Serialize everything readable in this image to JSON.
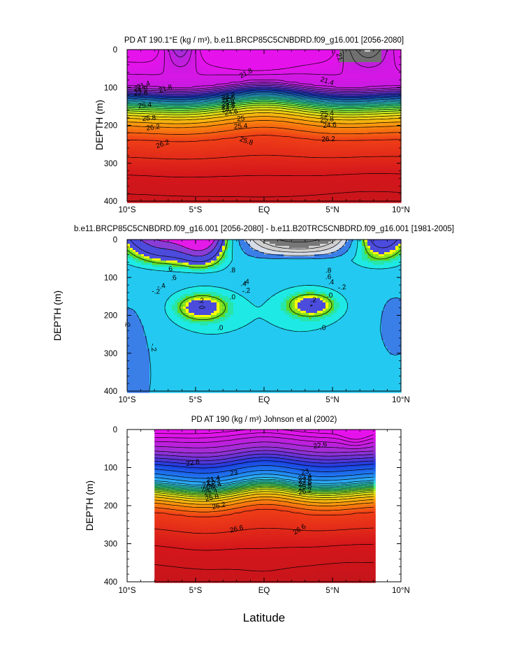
{
  "figure": {
    "xlabel": "Latitude",
    "xticks": [
      "10°S",
      "5°S",
      "EQ",
      "5°N",
      "10°N"
    ],
    "ylabel": "DEPTH (m)",
    "yticks": [
      "0",
      "100",
      "200",
      "300",
      "400"
    ]
  },
  "chart_data": [
    {
      "type": "heatmap",
      "title": "PD AT 190.1°E (kg / m³), b.e11.BRCP85C5CNBDRD.f09_g16.001 [2056-2080]",
      "xlabel": "Latitude",
      "ylabel": "DEPTH (m)",
      "xlim": [
        -10,
        10
      ],
      "ylim": [
        400,
        0
      ],
      "data_extent": [
        -10,
        10
      ],
      "color_scale": "density",
      "contour_labels": [
        "21.4",
        "21.8",
        "21.8",
        "21.4",
        "21.",
        "22.2",
        "22.6",
        "23",
        "23.4",
        "23.8",
        "24.2",
        "24.6",
        "25",
        "25.4",
        "25.8",
        "26.2",
        "26.2",
        "26.2",
        "25.8",
        "25.4",
        "25.4",
        "25.8",
        "24.6",
        "22.6",
        "21.8"
      ],
      "isopycnal_depths": [
        {
          "value": 21.4,
          "depth": 95
        },
        {
          "value": 21.8,
          "depth": 104
        },
        {
          "value": 22.2,
          "depth": 113
        },
        {
          "value": 22.6,
          "depth": 120
        },
        {
          "value": 23.0,
          "depth": 126
        },
        {
          "value": 23.4,
          "depth": 132
        },
        {
          "value": 23.8,
          "depth": 139
        },
        {
          "value": 24.2,
          "depth": 146
        },
        {
          "value": 24.6,
          "depth": 155
        },
        {
          "value": 25.0,
          "depth": 166
        },
        {
          "value": 25.4,
          "depth": 180
        },
        {
          "value": 25.8,
          "depth": 200
        },
        {
          "value": 26.2,
          "depth": 236
        },
        {
          "value": 26.6,
          "depth": 330
        }
      ]
    },
    {
      "type": "heatmap",
      "title": "b.e11.BRCP85C5CNBDRD.f09_g16.001 [2056-2080] - b.e11.B20TRC5CNBDRD.f09_g16.001 [1981-2005]",
      "xlabel": "Latitude",
      "ylabel": "DEPTH (m)",
      "xlim": [
        -10,
        10
      ],
      "ylim": [
        400,
        0
      ],
      "data_extent": [
        -10,
        10
      ],
      "color_scale": "difference",
      "contour_labels": [
        ".6",
        ".8",
        ".6",
        ".8",
        ".6",
        ".4",
        ".4",
        ".4",
        "-.4",
        "-.2",
        "-.2",
        "-.2",
        "-.2",
        ".0",
        ".0",
        ".2",
        ".2",
        ".0",
        ".0",
        "-.2"
      ],
      "levels": [
        -1.2,
        -0.8,
        -0.6,
        -0.4,
        -0.2,
        0.0,
        0.2,
        0.4,
        0.6,
        0.8
      ],
      "features": [
        {
          "name": "positive-core-south",
          "lat": -4.6,
          "depth": 175,
          "value": 0.2
        },
        {
          "name": "positive-core-north",
          "lat": 3.6,
          "depth": 172,
          "value": 0.2
        },
        {
          "name": "negative-surface-north",
          "lat": 3.5,
          "depth": 20,
          "value": -1.0
        }
      ]
    },
    {
      "type": "heatmap",
      "title": "PD AT 190 (kg / m³) Johnson et al (2002)",
      "xlabel": "Latitude",
      "ylabel": "DEPTH (m)",
      "xlim": [
        -10,
        10
      ],
      "ylim": [
        400,
        0
      ],
      "data_extent": [
        -8,
        8
      ],
      "color_scale": "density",
      "contour_labels": [
        "22.6",
        "23",
        "22.6",
        "23",
        "21.4",
        "22.2",
        "23.4",
        "23.8",
        "24.6",
        "25.4",
        "25.8",
        "26.2",
        "24.2",
        "24.6",
        "25.4",
        "25.8",
        "26.2",
        "26.6",
        "26.6"
      ],
      "isopycnal_depths": [
        {
          "value": 21.4,
          "depth": 30
        },
        {
          "value": 21.8,
          "depth": 55
        },
        {
          "value": 22.2,
          "depth": 72
        },
        {
          "value": 22.6,
          "depth": 88
        },
        {
          "value": 23.0,
          "depth": 112
        },
        {
          "value": 23.4,
          "depth": 130
        },
        {
          "value": 23.8,
          "depth": 138
        },
        {
          "value": 24.2,
          "depth": 145
        },
        {
          "value": 24.6,
          "depth": 152
        },
        {
          "value": 25.0,
          "depth": 160
        },
        {
          "value": 25.4,
          "depth": 172
        },
        {
          "value": 25.8,
          "depth": 188
        },
        {
          "value": 26.2,
          "depth": 212
        },
        {
          "value": 26.6,
          "depth": 300
        }
      ]
    }
  ]
}
